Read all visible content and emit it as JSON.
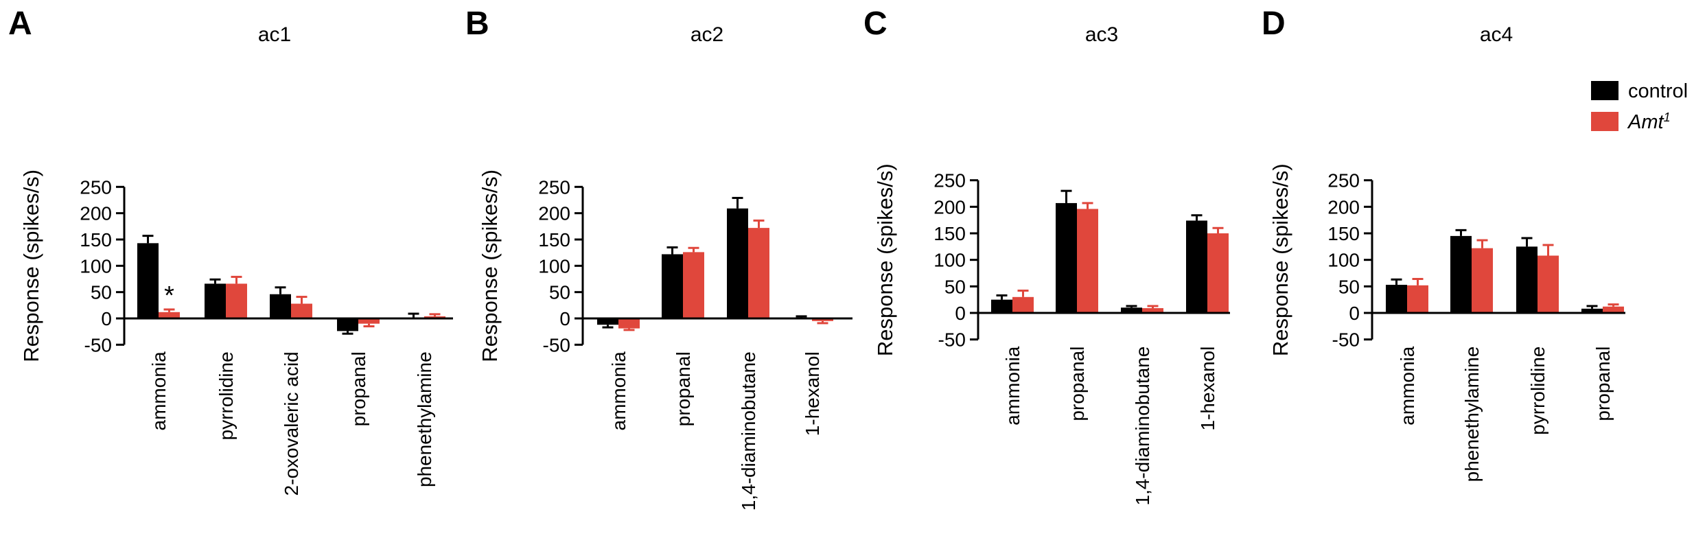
{
  "legend": {
    "items": [
      {
        "label": "control",
        "color": "#000000",
        "italic": false
      },
      {
        "label": "Amt",
        "sup": "1",
        "color": "#e0473c",
        "italic": true
      }
    ]
  },
  "chart_data": [
    {
      "type": "bar",
      "panel_letter": "A",
      "title": "ac1",
      "ylabel": "Response (spikes/s)",
      "ylim": [
        -50,
        250
      ],
      "yticks": [
        "-50",
        "0",
        "50",
        "100",
        "150",
        "200",
        "250"
      ],
      "categories": [
        "ammonia",
        "pyrrolidine",
        "2-oxovaleric acid",
        "propanal",
        "phenethylamine"
      ],
      "series": [
        {
          "name": "control",
          "values": [
            143,
            66,
            46,
            -24,
            0
          ],
          "errors": [
            14,
            8,
            13,
            5,
            9
          ]
        },
        {
          "name": "Amt1",
          "values": [
            12,
            66,
            28,
            -10,
            4
          ],
          "errors": [
            5,
            13,
            13,
            5,
            4
          ]
        }
      ],
      "annotations": [
        {
          "text": "*",
          "category": "ammonia",
          "series": "Amt1"
        }
      ]
    },
    {
      "type": "bar",
      "panel_letter": "B",
      "title": "ac2",
      "ylabel": "Response (spikes/s)",
      "ylim": [
        -50,
        250
      ],
      "yticks": [
        "-50",
        "0",
        "50",
        "100",
        "150",
        "200",
        "250"
      ],
      "categories": [
        "ammonia",
        "propanal",
        "1,4-diaminobutane",
        "1-hexanol"
      ],
      "series": [
        {
          "name": "control",
          "values": [
            -12,
            122,
            209,
            0
          ],
          "errors": [
            5,
            13,
            20,
            4
          ]
        },
        {
          "name": "Amt1",
          "values": [
            -19,
            126,
            172,
            -5
          ],
          "errors": [
            3,
            8,
            14,
            4
          ]
        }
      ]
    },
    {
      "type": "bar",
      "panel_letter": "C",
      "title": "ac3",
      "ylabel": "Response (spikes/s)",
      "ylim": [
        -50,
        250
      ],
      "yticks": [
        "-50",
        "0",
        "50",
        "100",
        "150",
        "200",
        "250"
      ],
      "categories": [
        "ammonia",
        "propanal",
        "1,4-diaminobutane",
        "1-hexanol"
      ],
      "series": [
        {
          "name": "control",
          "values": [
            25,
            207,
            10,
            174
          ],
          "errors": [
            8,
            23,
            3,
            10
          ]
        },
        {
          "name": "Amt1",
          "values": [
            30,
            196,
            9,
            150
          ],
          "errors": [
            12,
            11,
            4,
            10
          ]
        }
      ]
    },
    {
      "type": "bar",
      "panel_letter": "D",
      "title": "ac4",
      "ylabel": "Response (spikes/s)",
      "ylim": [
        -50,
        250
      ],
      "yticks": [
        "-50",
        "0",
        "50",
        "100",
        "150",
        "200",
        "250"
      ],
      "categories": [
        "ammonia",
        "phenethylamine",
        "pyrrolidine",
        "propanal"
      ],
      "series": [
        {
          "name": "control",
          "values": [
            53,
            145,
            125,
            8
          ],
          "errors": [
            10,
            11,
            16,
            5
          ]
        },
        {
          "name": "Amt1",
          "values": [
            52,
            122,
            108,
            12
          ],
          "errors": [
            12,
            15,
            20,
            4
          ]
        }
      ]
    }
  ]
}
